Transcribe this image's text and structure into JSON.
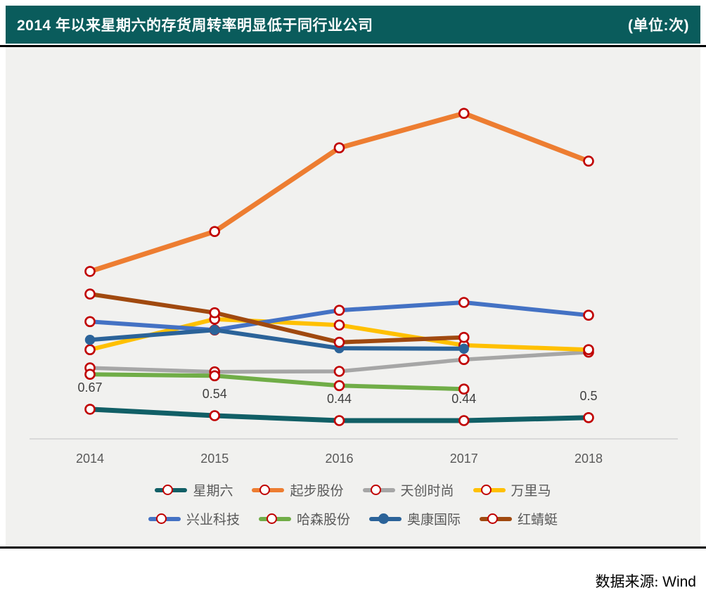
{
  "header": {
    "title": "2014 年以来星期六的存货周转率明显低于同行业公司",
    "unit_label": "(单位:次)"
  },
  "footer": {
    "source_label": "数据来源:",
    "source_value": "Wind"
  },
  "theme": {
    "title_bar_bg": "#0A5C5C",
    "title_text_color": "#FFFFFF",
    "chart_bg": "#F1F1EF",
    "axis_line_color": "#D9D9D9",
    "tick_label_color": "#595959",
    "data_label_color": "#404040",
    "marker_ring_color": "#C00000",
    "divider_color": "#000000"
  },
  "chart_data": {
    "type": "line",
    "title": "2014 年以来星期六的存货周转率明显低于同行业公司",
    "unit": "次",
    "x": [
      "2014",
      "2015",
      "2016",
      "2017",
      "2018"
    ],
    "xlabel": "",
    "ylabel": "",
    "ylim": [
      0,
      7.5
    ],
    "grid": false,
    "y_axis_visible": false,
    "legend_position": "bottom",
    "series": [
      {
        "name": "星期六",
        "color": "#115F66",
        "marker": "open-circle",
        "values": [
          0.67,
          0.54,
          0.44,
          0.44,
          0.5
        ],
        "data_labels": [
          "0.67",
          "0.54",
          "0.44",
          "0.44",
          "0.5"
        ]
      },
      {
        "name": "起步股份",
        "color": "#ED7D31",
        "marker": "open-circle",
        "values": [
          3.47,
          4.28,
          5.98,
          6.68,
          5.71
        ]
      },
      {
        "name": "天创时尚",
        "color": "#A6A6A6",
        "marker": "open-circle",
        "values": [
          1.51,
          1.43,
          1.44,
          1.68,
          1.83
        ]
      },
      {
        "name": "万里马",
        "color": "#FFC000",
        "marker": "open-circle",
        "values": [
          1.88,
          2.5,
          2.38,
          1.97,
          1.88
        ]
      },
      {
        "name": "兴业科技",
        "color": "#4472C4",
        "marker": "open-circle",
        "values": [
          2.45,
          2.28,
          2.68,
          2.84,
          2.58
        ]
      },
      {
        "name": "哈森股份",
        "color": "#70AD47",
        "marker": "open-circle",
        "values": [
          1.38,
          1.35,
          1.15,
          1.08,
          null
        ]
      },
      {
        "name": "奥康国际",
        "color": "#2B6399",
        "marker": "filled-circle",
        "values": [
          2.08,
          2.28,
          1.91,
          1.9,
          null
        ]
      },
      {
        "name": "红蜻蜓",
        "color": "#A0490F",
        "marker": "open-circle",
        "values": [
          3.01,
          2.63,
          2.03,
          2.13,
          null
        ]
      }
    ]
  }
}
